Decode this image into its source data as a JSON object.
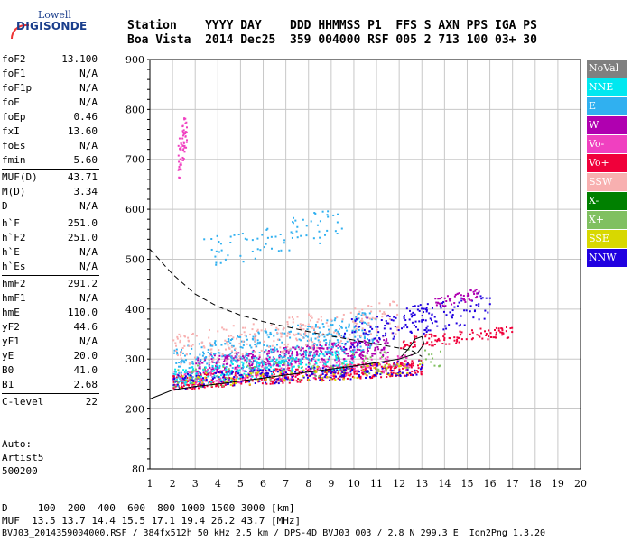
{
  "logo": {
    "line1": "Lowell",
    "line2": "DIGISONDE"
  },
  "header": {
    "line1": "Station    YYYY DAY    DDD HHMMSS P1  FFS S AXN PPS IGA PS",
    "line2": "Boa Vista  2014 Dec25  359 004000 RSF 005 2 713 100 03+ 30"
  },
  "params": [
    {
      "key": "foF2",
      "value": "13.100"
    },
    {
      "key": "foF1",
      "value": "N/A"
    },
    {
      "key": "foF1p",
      "value": "N/A"
    },
    {
      "key": "foE",
      "value": "N/A"
    },
    {
      "key": "foEp",
      "value": "0.46"
    },
    {
      "key": "fxI",
      "value": "13.60"
    },
    {
      "key": "foEs",
      "value": "N/A"
    },
    {
      "key": "fmin",
      "value": "5.60"
    },
    {
      "key": "MUF(D)",
      "value": "43.71"
    },
    {
      "key": "M(D)",
      "value": "3.34"
    },
    {
      "key": "D",
      "value": "N/A"
    },
    {
      "key": "h`F",
      "value": "251.0"
    },
    {
      "key": "h`F2",
      "value": "251.0"
    },
    {
      "key": "h`E",
      "value": "N/A"
    },
    {
      "key": "h`Es",
      "value": "N/A"
    },
    {
      "key": "hmF2",
      "value": "291.2"
    },
    {
      "key": "hmF1",
      "value": "N/A"
    },
    {
      "key": "hmE",
      "value": "110.0"
    },
    {
      "key": "yF2",
      "value": "44.6"
    },
    {
      "key": "yF1",
      "value": "N/A"
    },
    {
      "key": "yE",
      "value": "20.0"
    },
    {
      "key": "B0",
      "value": "41.0"
    },
    {
      "key": "B1",
      "value": "2.68"
    },
    {
      "key": "C-level",
      "value": "22"
    }
  ],
  "auto": {
    "line1": "Auto:",
    "line2": "Artist5",
    "line3": "500200"
  },
  "legend": [
    {
      "label": "NoVal",
      "color": "#808080"
    },
    {
      "label": "NNE",
      "color": "#00e8f0"
    },
    {
      "label": "E",
      "color": "#30b0f0"
    },
    {
      "label": "W",
      "color": "#b000b0"
    },
    {
      "label": "Vo-",
      "color": "#f040c0"
    },
    {
      "label": "Vo+",
      "color": "#f0003a"
    },
    {
      "label": "SSW",
      "color": "#f8b0b0"
    },
    {
      "label": "X-",
      "color": "#008000"
    },
    {
      "label": "X+",
      "color": "#80c060"
    },
    {
      "label": "SSE",
      "color": "#d8d800"
    },
    {
      "label": "NNW",
      "color": "#2000e0"
    }
  ],
  "footer": {
    "line1": "D     100  200  400  600  800 1000 1500 3000 [km]",
    "line2": "MUF  13.5 13.7 14.4 15.5 17.1 19.4 26.2 43.7 [MHz]",
    "line3": "BVJ03_2014359004000.RSF / 384fx512h 50 kHz 2.5 km / DPS-4D BVJ03 003 / 2.8 N 299.3 E  Ion2Png 1.3.20"
  },
  "chart_data": {
    "type": "scatter",
    "xlim": [
      1,
      20
    ],
    "ylim": [
      80,
      900
    ],
    "x_ticks": [
      "1",
      "2",
      "3",
      "4",
      "5",
      "6",
      "7",
      "8",
      "9",
      "10",
      "11",
      "12",
      "13",
      "14",
      "15",
      "16",
      "17",
      "18",
      "19",
      "20"
    ],
    "y_ticks": [
      "80",
      "200",
      "300",
      "400",
      "500",
      "600",
      "700",
      "800",
      "900"
    ],
    "grid": true,
    "legend_position": "right",
    "profile_curve": [
      [
        1.0,
        520
      ],
      [
        2.0,
        470
      ],
      [
        3.0,
        430
      ],
      [
        4.0,
        405
      ],
      [
        5.0,
        388
      ],
      [
        6.0,
        375
      ],
      [
        7.0,
        365
      ],
      [
        8.0,
        355
      ],
      [
        9.0,
        346
      ],
      [
        10.0,
        338
      ],
      [
        11.0,
        330
      ],
      [
        12.0,
        322
      ],
      [
        12.6,
        316
      ],
      [
        13.0,
        305
      ]
    ],
    "trace_curve": [
      [
        1.0,
        220
      ],
      [
        2.0,
        238
      ],
      [
        3.0,
        245
      ],
      [
        4.0,
        250
      ],
      [
        5.0,
        256
      ],
      [
        6.0,
        262
      ],
      [
        7.0,
        268
      ],
      [
        8.0,
        274
      ],
      [
        9.0,
        280
      ],
      [
        10.0,
        286
      ],
      [
        11.0,
        293
      ],
      [
        12.0,
        300
      ],
      [
        12.8,
        312
      ],
      [
        13.1,
        330
      ],
      [
        13.0,
        345
      ],
      [
        12.7,
        340
      ],
      [
        12.4,
        320
      ],
      [
        12.1,
        305
      ]
    ],
    "clusters": [
      {
        "series": "Vo+",
        "x": [
          2.0,
          13.0
        ],
        "y": [
          240,
          300
        ],
        "n": 520
      },
      {
        "series": "Vo-",
        "x": [
          2.0,
          12.5
        ],
        "y": [
          245,
          310
        ],
        "n": 260
      },
      {
        "series": "W",
        "x": [
          3.0,
          11.5
        ],
        "y": [
          270,
          345
        ],
        "n": 380
      },
      {
        "series": "E",
        "x": [
          2.0,
          11.0
        ],
        "y": [
          250,
          400
        ],
        "n": 450
      },
      {
        "series": "NNE",
        "x": [
          2.0,
          10.0
        ],
        "y": [
          245,
          320
        ],
        "n": 200
      },
      {
        "series": "NNW",
        "x": [
          2.0,
          13.0
        ],
        "y": [
          240,
          300
        ],
        "n": 220
      },
      {
        "series": "SSW",
        "x": [
          2.0,
          12.0
        ],
        "y": [
          280,
          420
        ],
        "n": 260
      },
      {
        "series": "NNW",
        "x": [
          9.5,
          16.0
        ],
        "y": [
          320,
          440
        ],
        "n": 170
      },
      {
        "series": "Vo+",
        "x": [
          12.0,
          17.0
        ],
        "y": [
          320,
          370
        ],
        "n": 110
      },
      {
        "series": "W",
        "x": [
          13.5,
          15.5
        ],
        "y": [
          400,
          445
        ],
        "n": 50
      },
      {
        "series": "E",
        "x": [
          3.0,
          9.5
        ],
        "y": [
          470,
          610
        ],
        "n": 80
      },
      {
        "series": "Vo-",
        "x": [
          2.2,
          2.6
        ],
        "y": [
          650,
          810
        ],
        "n": 60
      },
      {
        "series": "X+",
        "x": [
          2.0,
          14.5
        ],
        "y": [
          240,
          330
        ],
        "n": 90
      },
      {
        "series": "SSE",
        "x": [
          2.0,
          13.0
        ],
        "y": [
          240,
          300
        ],
        "n": 80
      }
    ]
  }
}
